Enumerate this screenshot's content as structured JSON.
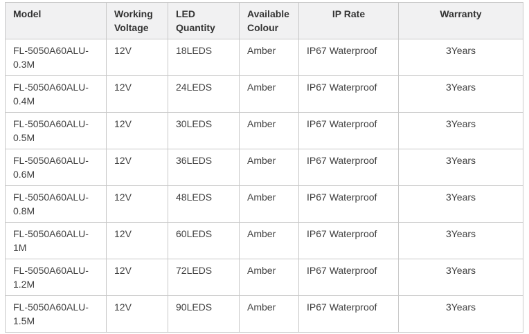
{
  "table": {
    "columns": [
      {
        "id": "model",
        "label": "Model",
        "header_align": "left",
        "cell_align": "left"
      },
      {
        "id": "working-voltage",
        "label": "Working Voltage",
        "header_align": "left",
        "cell_align": "left"
      },
      {
        "id": "led-quantity",
        "label": "LED Quantity",
        "header_align": "left",
        "cell_align": "left"
      },
      {
        "id": "available-colour",
        "label": "Available Colour",
        "header_align": "left",
        "cell_align": "left"
      },
      {
        "id": "ip-rate",
        "label": "IP Rate",
        "header_align": "center",
        "cell_align": "left"
      },
      {
        "id": "warranty",
        "label": "Warranty",
        "header_align": "center",
        "cell_align": "center"
      }
    ],
    "rows": [
      [
        "FL-5050A60ALU-0.3M",
        "12V",
        "18LEDS",
        "Amber",
        "IP67 Waterproof",
        "3Years"
      ],
      [
        "FL-5050A60ALU-0.4M",
        "12V",
        "24LEDS",
        "Amber",
        "IP67 Waterproof",
        "3Years"
      ],
      [
        "FL-5050A60ALU-0.5M",
        "12V",
        "30LEDS",
        "Amber",
        "IP67 Waterproof",
        "3Years"
      ],
      [
        "FL-5050A60ALU-0.6M",
        "12V",
        "36LEDS",
        "Amber",
        "IP67 Waterproof",
        "3Years"
      ],
      [
        "FL-5050A60ALU-0.8M",
        "12V",
        "48LEDS",
        "Amber",
        "IP67 Waterproof",
        "3Years"
      ],
      [
        "FL-5050A60ALU-1M",
        "12V",
        "60LEDS",
        "Amber",
        "IP67 Waterproof",
        "3Years"
      ],
      [
        "FL-5050A60ALU-1.2M",
        "12V",
        "72LEDS",
        "Amber",
        "IP67 Waterproof",
        "3Years"
      ],
      [
        "FL-5050A60ALU-1.5M",
        "12V",
        "90LEDS",
        "Amber",
        "IP67 Waterproof",
        "3Years"
      ]
    ]
  },
  "colors": {
    "header_background": "#f1f1f2",
    "border": "#c8c8c8",
    "header_text": "#333333",
    "cell_text": "#404040"
  }
}
